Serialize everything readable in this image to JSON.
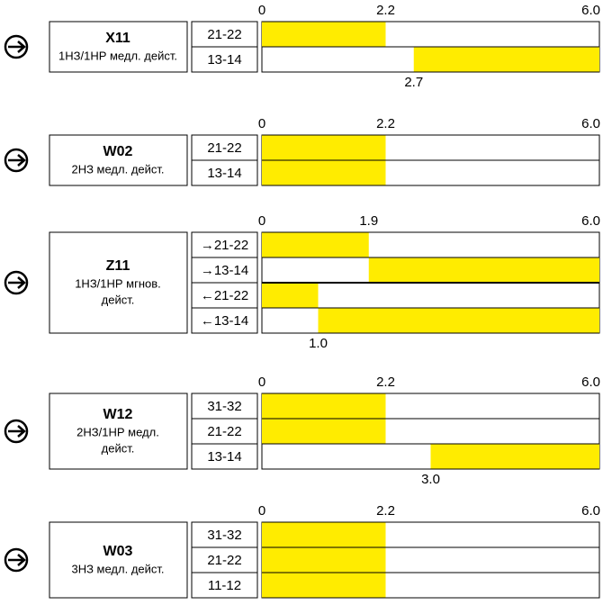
{
  "scale": {
    "min": 0,
    "max": {
      "value": 6,
      "label": "6.0"
    }
  },
  "blocks": [
    {
      "code": "X11",
      "description_lines": [
        "1НЗ/1НР медл. дейст."
      ],
      "ticks": [
        0,
        2.2,
        {
          "value": 6,
          "label": "6.0"
        }
      ],
      "rows": [
        {
          "label": "21-22",
          "bar": [
            0,
            2.2
          ]
        },
        {
          "label": "13-14",
          "bar": [
            2.7,
            6
          ]
        }
      ],
      "markers": [
        2.7
      ]
    },
    {
      "code": "W02",
      "description_lines": [
        "2НЗ медл. дейст."
      ],
      "ticks": [
        0,
        2.2,
        {
          "value": 6,
          "label": "6.0"
        }
      ],
      "rows": [
        {
          "label": "21-22",
          "bar": [
            0,
            2.2
          ]
        },
        {
          "label": "13-14",
          "bar": [
            0,
            2.2
          ]
        }
      ],
      "markers": []
    },
    {
      "code": "Z11",
      "description_lines": [
        "1НЗ/1НР мгнов.",
        "дейст."
      ],
      "ticks": [
        0,
        1.9,
        {
          "value": 6,
          "label": "6.0"
        }
      ],
      "rows": [
        {
          "label": "→21-22",
          "bar": [
            0,
            1.9
          ]
        },
        {
          "label": "→13-14",
          "bar": [
            1.9,
            6
          ]
        },
        {
          "label": "←21-22",
          "bar": [
            0,
            1
          ]
        },
        {
          "label": "←13-14",
          "bar": [
            1,
            6
          ]
        }
      ],
      "markers": [
        {
          "value": 1,
          "label": "1.0"
        }
      ]
    },
    {
      "code": "W12",
      "description_lines": [
        "2НЗ/1НР медл.",
        "дейст."
      ],
      "ticks": [
        0,
        2.2,
        {
          "value": 6,
          "label": "6.0"
        }
      ],
      "rows": [
        {
          "label": "31-32",
          "bar": [
            0,
            2.2
          ]
        },
        {
          "label": "21-22",
          "bar": [
            0,
            2.2
          ]
        },
        {
          "label": "13-14",
          "bar": [
            3,
            6
          ]
        }
      ],
      "markers": [
        {
          "value": 3,
          "label": "3.0"
        }
      ]
    },
    {
      "code": "W03",
      "description_lines": [
        "3НЗ медл. дейст."
      ],
      "ticks": [
        0,
        2.2,
        {
          "value": 6,
          "label": "6.0"
        }
      ],
      "rows": [
        {
          "label": "31-32",
          "bar": [
            0,
            2.2
          ]
        },
        {
          "label": "21-22",
          "bar": [
            0,
            2.2
          ]
        },
        {
          "label": "11-12",
          "bar": [
            0,
            2.2
          ]
        }
      ],
      "markers": []
    }
  ]
}
